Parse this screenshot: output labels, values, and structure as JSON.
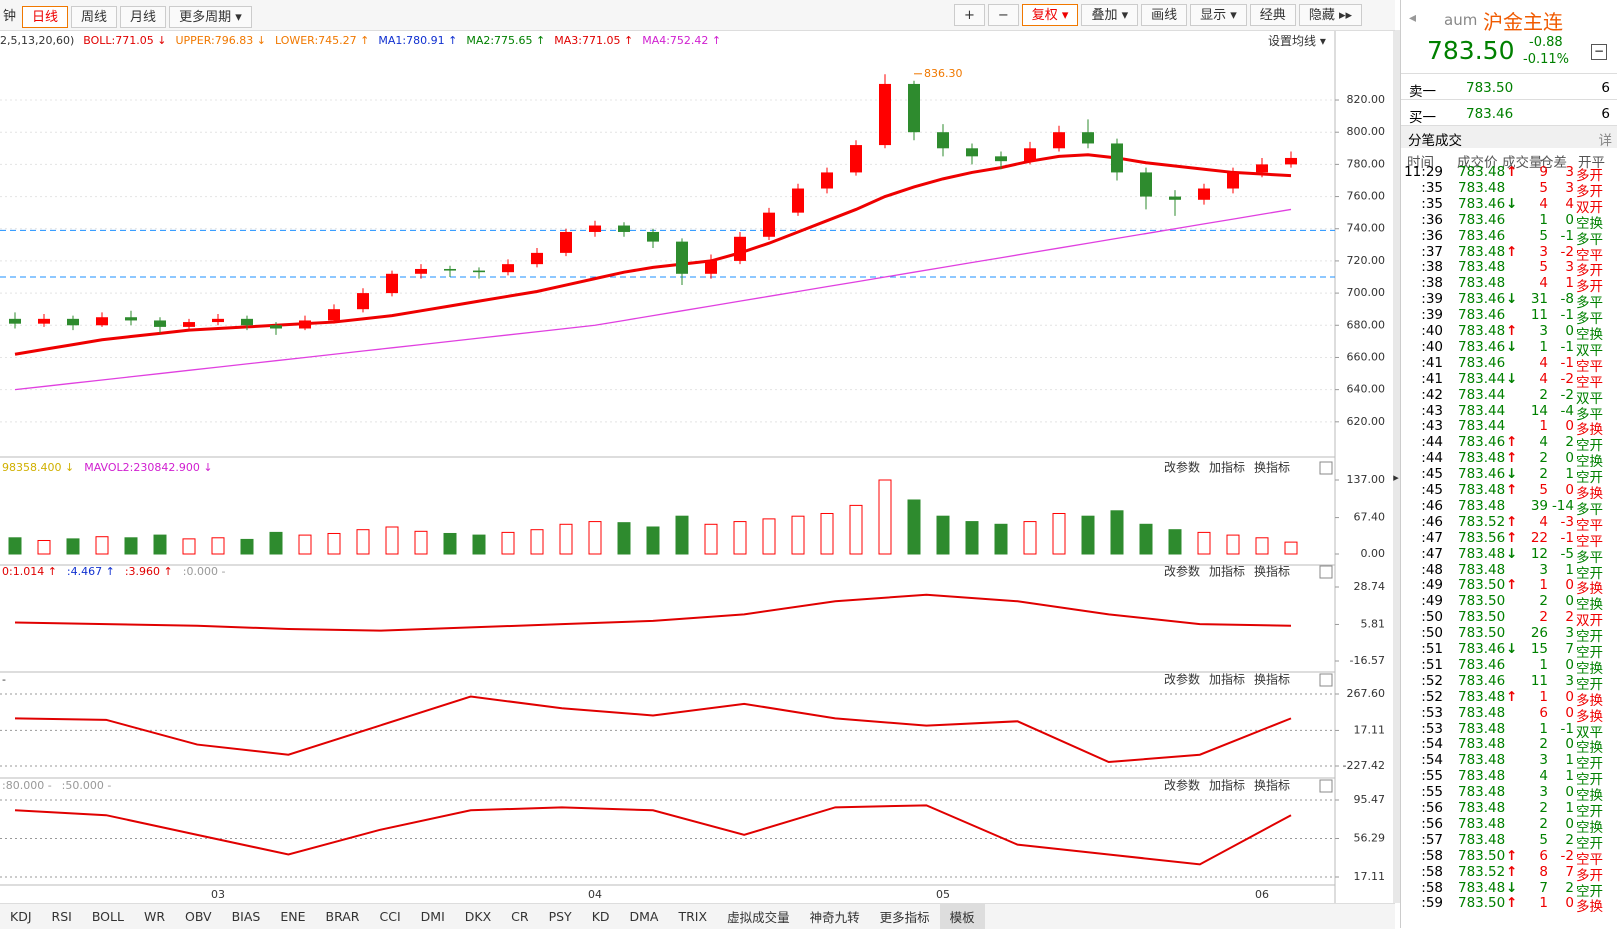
{
  "toolbar": {
    "left": [
      {
        "label": "钟"
      },
      {
        "label": "日线",
        "active": true
      },
      {
        "label": "周线"
      },
      {
        "label": "月线"
      },
      {
        "label": "更多周期 ▾"
      }
    ],
    "right": [
      {
        "label": "+"
      },
      {
        "label": "−"
      },
      {
        "label": "复权 ▾",
        "active": true
      },
      {
        "label": "叠加 ▾"
      },
      {
        "label": "画线"
      },
      {
        "label": "显示 ▾"
      },
      {
        "label": "经典"
      },
      {
        "label": "隐藏 ▸▸"
      }
    ]
  },
  "price_chart": {
    "legend": [
      {
        "text": "2,5,13,20,60)",
        "color": "#333333"
      },
      {
        "text": "BOLL:771.05 ↓",
        "color": "#e00000"
      },
      {
        "text": "UPPER:796.83 ↓",
        "color": "#f07800"
      },
      {
        "text": "LOWER:745.27 ↑",
        "color": "#f07800"
      },
      {
        "text": "MA1:780.91 ↑",
        "color": "#1030d0"
      },
      {
        "text": "MA2:775.65 ↑",
        "color": "#008000"
      },
      {
        "text": "MA3:771.05 ↑",
        "color": "#e00000"
      },
      {
        "text": "MA4:752.42 ↑",
        "color": "#d020d0"
      }
    ],
    "settings": "设置均线 ▾",
    "ylim": [
      600,
      845
    ],
    "yticks": [
      {
        "value": 820,
        "label": "820.00"
      },
      {
        "value": 800,
        "label": "800.00"
      },
      {
        "value": 780,
        "label": "780.00"
      },
      {
        "value": 760,
        "label": "760.00"
      },
      {
        "value": 740,
        "label": "740.00"
      },
      {
        "value": 720,
        "label": "720.00"
      },
      {
        "value": 700,
        "label": "700.00"
      },
      {
        "value": 680,
        "label": "680.00"
      },
      {
        "value": 660,
        "label": "660.00"
      },
      {
        "value": 640,
        "label": "640.00"
      },
      {
        "value": 620,
        "label": "620.00"
      }
    ],
    "annotation": {
      "value": 836.3,
      "label": "836.30"
    },
    "up_color": "#ff0000",
    "down_color": "#2e8b2e",
    "candles": {
      "open": [
        684,
        681,
        684,
        680,
        685,
        683,
        679,
        682,
        684,
        680,
        678,
        683,
        690,
        700,
        712,
        715,
        714,
        713,
        718,
        725,
        738,
        742,
        738,
        732,
        712,
        720,
        735,
        750,
        765,
        775,
        792,
        830,
        800,
        790,
        785,
        782,
        790,
        800,
        793,
        775,
        760,
        758,
        765,
        775,
        780
      ],
      "high": [
        688,
        687,
        686,
        688,
        689,
        685,
        684,
        687,
        686,
        682,
        686,
        693,
        703,
        714,
        718,
        717,
        716,
        721,
        728,
        740,
        745,
        744,
        740,
        734,
        724,
        738,
        753,
        768,
        778,
        795,
        836,
        832,
        805,
        793,
        788,
        794,
        804,
        808,
        796,
        778,
        764,
        768,
        778,
        784,
        788
      ],
      "low": [
        678,
        679,
        677,
        679,
        680,
        675,
        677,
        680,
        677,
        674,
        677,
        681,
        688,
        698,
        709,
        710,
        709,
        711,
        716,
        723,
        735,
        735,
        728,
        705,
        709,
        718,
        733,
        748,
        762,
        773,
        790,
        795,
        785,
        780,
        777,
        780,
        788,
        790,
        770,
        752,
        748,
        755,
        762,
        772,
        778
      ],
      "close": [
        681,
        684,
        680,
        685,
        683,
        679,
        682,
        684,
        680,
        678,
        683,
        690,
        700,
        712,
        715,
        714,
        713,
        718,
        725,
        738,
        742,
        738,
        732,
        712,
        720,
        735,
        750,
        765,
        775,
        792,
        830,
        800,
        790,
        785,
        782,
        790,
        800,
        793,
        775,
        760,
        758,
        765,
        775,
        780,
        784
      ]
    },
    "lines": [
      {
        "name": "MA3",
        "color": "#ee0000",
        "values": [
          662,
          665,
          668,
          671,
          673,
          675,
          677,
          678,
          679,
          680,
          681,
          682,
          684,
          686,
          689,
          692,
          695,
          698,
          701,
          705,
          709,
          713,
          716,
          718,
          720,
          725,
          731,
          738,
          745,
          752,
          760,
          766,
          771,
          775,
          778,
          782,
          785,
          786,
          784,
          781,
          779,
          777,
          775,
          774,
          773
        ]
      },
      {
        "name": "MA4",
        "color": "#e040e0",
        "values": [
          640,
          642,
          644,
          646,
          648,
          650,
          652,
          654,
          656,
          658,
          660,
          662,
          664,
          666,
          668,
          670,
          672,
          674,
          676,
          678,
          680,
          683,
          686,
          689,
          692,
          695,
          698,
          701,
          704,
          707,
          710,
          713,
          716,
          719,
          722,
          725,
          728,
          731,
          734,
          737,
          740,
          743,
          746,
          749,
          752
        ]
      }
    ],
    "reference_lines": [
      739,
      710
    ],
    "reference_color": "#1e90ff",
    "categories": [
      null,
      null,
      null,
      null,
      null,
      null,
      null,
      "03",
      null,
      null,
      null,
      null,
      null,
      null,
      null,
      null,
      null,
      null,
      null,
      null,
      "04",
      null,
      null,
      null,
      null,
      null,
      null,
      null,
      null,
      null,
      null,
      null,
      "05",
      null,
      null,
      null,
      null,
      null,
      null,
      null,
      null,
      null,
      null,
      "06",
      null
    ]
  },
  "panel_buttons": [
    "改参数",
    "加指标",
    "换指标"
  ],
  "volume": {
    "legend": [
      {
        "text": "98358.400 ↓",
        "color": "#d0b000"
      },
      {
        "text": "MAVOL2:230842.900 ↓",
        "color": "#d020d0"
      }
    ],
    "values": [
      30,
      25,
      28,
      32,
      30,
      35,
      28,
      30,
      27,
      40,
      35,
      38,
      45,
      50,
      42,
      38,
      35,
      40,
      45,
      55,
      60,
      58,
      50,
      70,
      55,
      60,
      65,
      70,
      75,
      90,
      137,
      100,
      70,
      60,
      55,
      60,
      75,
      70,
      80,
      55,
      45,
      40,
      35,
      30,
      22
    ],
    "ylim": [
      0,
      137
    ],
    "yticks": [
      {
        "value": 137,
        "label": "137.00"
      },
      {
        "value": 67.4,
        "label": "67.40"
      },
      {
        "value": 0,
        "label": "0.00"
      }
    ]
  },
  "indicators": [
    {
      "legend": [
        {
          "text": "0:1.014 ↑",
          "color": "#e00000"
        },
        {
          "text": ":4.467 ↑",
          "color": "#1030d0"
        },
        {
          "text": ":3.960 ↑",
          "color": "#e00000"
        },
        {
          "text": ":0.000 -",
          "color": "#999999"
        }
      ],
      "color": "#e00000",
      "values": [
        7,
        6,
        5,
        3,
        2,
        4,
        6,
        8,
        12,
        20,
        24,
        20,
        12,
        6,
        5
      ],
      "ylim": [
        -16.57,
        28.74
      ],
      "yticks": [
        28.74,
        5.81,
        -16.57
      ]
    },
    {
      "legend": [
        {
          "text": "-",
          "color": "#333333"
        }
      ],
      "color": "#e00000",
      "values": [
        100,
        90,
        -80,
        -150,
        50,
        250,
        170,
        120,
        200,
        100,
        50,
        80,
        -200,
        -150,
        100
      ],
      "ylim": [
        -227.42,
        267.6
      ],
      "yticks": [
        {
          "value": 267.6,
          "label": "267.60"
        },
        17.11,
        -227.42
      ]
    },
    {
      "legend": [
        {
          "text": ":80.000 -",
          "color": "#999999"
        },
        {
          "text": ":50.000 -",
          "color": "#999999"
        }
      ],
      "color": "#e00000",
      "values": [
        85,
        80,
        60,
        40,
        65,
        85,
        88,
        85,
        60,
        88,
        90,
        50,
        40,
        30,
        80
      ],
      "ylim": [
        17.11,
        95.47
      ],
      "yticks": [
        95.47,
        56.29,
        17.11
      ]
    }
  ],
  "bottom_tabs": [
    {
      "label": "KDJ"
    },
    {
      "label": "RSI"
    },
    {
      "label": "BOLL"
    },
    {
      "label": "WR"
    },
    {
      "label": "OBV"
    },
    {
      "label": "BIAS"
    },
    {
      "label": "ENE"
    },
    {
      "label": "BRAR"
    },
    {
      "label": "CCI"
    },
    {
      "label": "DMI"
    },
    {
      "label": "DKX"
    },
    {
      "label": "CR"
    },
    {
      "label": "PSY"
    },
    {
      "label": "KD"
    },
    {
      "label": "DMA"
    },
    {
      "label": "TRIX"
    },
    {
      "label": "虚拟成交量"
    },
    {
      "label": "神奇九转"
    },
    {
      "label": "更多指标"
    },
    {
      "label": "模板",
      "active": true
    }
  ],
  "quote": {
    "symbol": "aum",
    "name": "沪金主连",
    "price": "783.50",
    "change": "-0.88",
    "change_pct": "-0.11%",
    "book": [
      {
        "label": "卖一",
        "price": "783.50",
        "volume": 6
      },
      {
        "label": "买一",
        "price": "783.46",
        "volume": 6
      }
    ],
    "trades_title": "分笔成交",
    "detail": "详",
    "headers": [
      "时间",
      "成交价",
      "成交量",
      "仓差",
      "开平"
    ],
    "trades": [
      [
        "11:29",
        "783.48",
        9,
        3,
        "多开",
        "↑"
      ],
      [
        ":35",
        "783.48",
        5,
        3,
        "多开"
      ],
      [
        ":35",
        "783.46",
        4,
        4,
        "双开",
        "↓"
      ],
      [
        ":36",
        "783.46",
        1,
        0,
        "空换"
      ],
      [
        ":36",
        "783.46",
        5,
        -1,
        "多平"
      ],
      [
        ":37",
        "783.48",
        3,
        -2,
        "空平",
        "↑"
      ],
      [
        ":38",
        "783.48",
        5,
        3,
        "多开"
      ],
      [
        ":38",
        "783.48",
        4,
        1,
        "多开"
      ],
      [
        ":39",
        "783.46",
        31,
        -8,
        "多平",
        "↓"
      ],
      [
        ":39",
        "783.46",
        11,
        -1,
        "多平"
      ],
      [
        ":40",
        "783.48",
        3,
        0,
        "空换",
        "↑"
      ],
      [
        ":40",
        "783.46",
        1,
        -1,
        "双平",
        "↓"
      ],
      [
        ":41",
        "783.46",
        4,
        -1,
        "空平"
      ],
      [
        ":41",
        "783.44",
        4,
        -2,
        "空平",
        "↓"
      ],
      [
        ":42",
        "783.44",
        2,
        -2,
        "双平"
      ],
      [
        ":43",
        "783.44",
        14,
        -4,
        "多平"
      ],
      [
        ":43",
        "783.44",
        1,
        0,
        "多换"
      ],
      [
        ":44",
        "783.46",
        4,
        2,
        "空开",
        "↑"
      ],
      [
        ":44",
        "783.48",
        2,
        0,
        "空换",
        "↑"
      ],
      [
        ":45",
        "783.46",
        2,
        1,
        "空开",
        "↓"
      ],
      [
        ":45",
        "783.48",
        5,
        0,
        "多换",
        "↑"
      ],
      [
        ":46",
        "783.48",
        39,
        -14,
        "多平"
      ],
      [
        ":46",
        "783.52",
        4,
        -3,
        "空平",
        "↑"
      ],
      [
        ":47",
        "783.56",
        22,
        -1,
        "空平",
        "↑"
      ],
      [
        ":47",
        "783.48",
        12,
        -5,
        "多平",
        "↓"
      ],
      [
        ":48",
        "783.48",
        3,
        1,
        "空开"
      ],
      [
        ":49",
        "783.50",
        1,
        0,
        "多换",
        "↑"
      ],
      [
        ":49",
        "783.50",
        2,
        0,
        "空换"
      ],
      [
        ":50",
        "783.50",
        2,
        2,
        "双开"
      ],
      [
        ":50",
        "783.50",
        26,
        3,
        "空开"
      ],
      [
        ":51",
        "783.46",
        15,
        7,
        "空开",
        "↓"
      ],
      [
        ":51",
        "783.46",
        1,
        0,
        "空换"
      ],
      [
        ":52",
        "783.46",
        11,
        3,
        "空开"
      ],
      [
        ":52",
        "783.48",
        1,
        0,
        "多换",
        "↑"
      ],
      [
        ":53",
        "783.48",
        6,
        0,
        "多换"
      ],
      [
        ":53",
        "783.48",
        1,
        -1,
        "双平"
      ],
      [
        ":54",
        "783.48",
        2,
        0,
        "空换"
      ],
      [
        ":54",
        "783.48",
        3,
        1,
        "空开"
      ],
      [
        ":55",
        "783.48",
        4,
        1,
        "空开"
      ],
      [
        ":55",
        "783.48",
        3,
        0,
        "空换"
      ],
      [
        ":56",
        "783.48",
        2,
        1,
        "空开"
      ],
      [
        ":56",
        "783.48",
        2,
        0,
        "空换"
      ],
      [
        ":57",
        "783.48",
        5,
        2,
        "空开"
      ],
      [
        ":58",
        "783.50",
        6,
        -2,
        "空平",
        "↑"
      ],
      [
        ":58",
        "783.52",
        8,
        7,
        "多开",
        "↑"
      ],
      [
        ":58",
        "783.48",
        7,
        2,
        "空开",
        "↓"
      ],
      [
        ":59",
        "783.50",
        1,
        0,
        "多换",
        "↑"
      ]
    ]
  }
}
